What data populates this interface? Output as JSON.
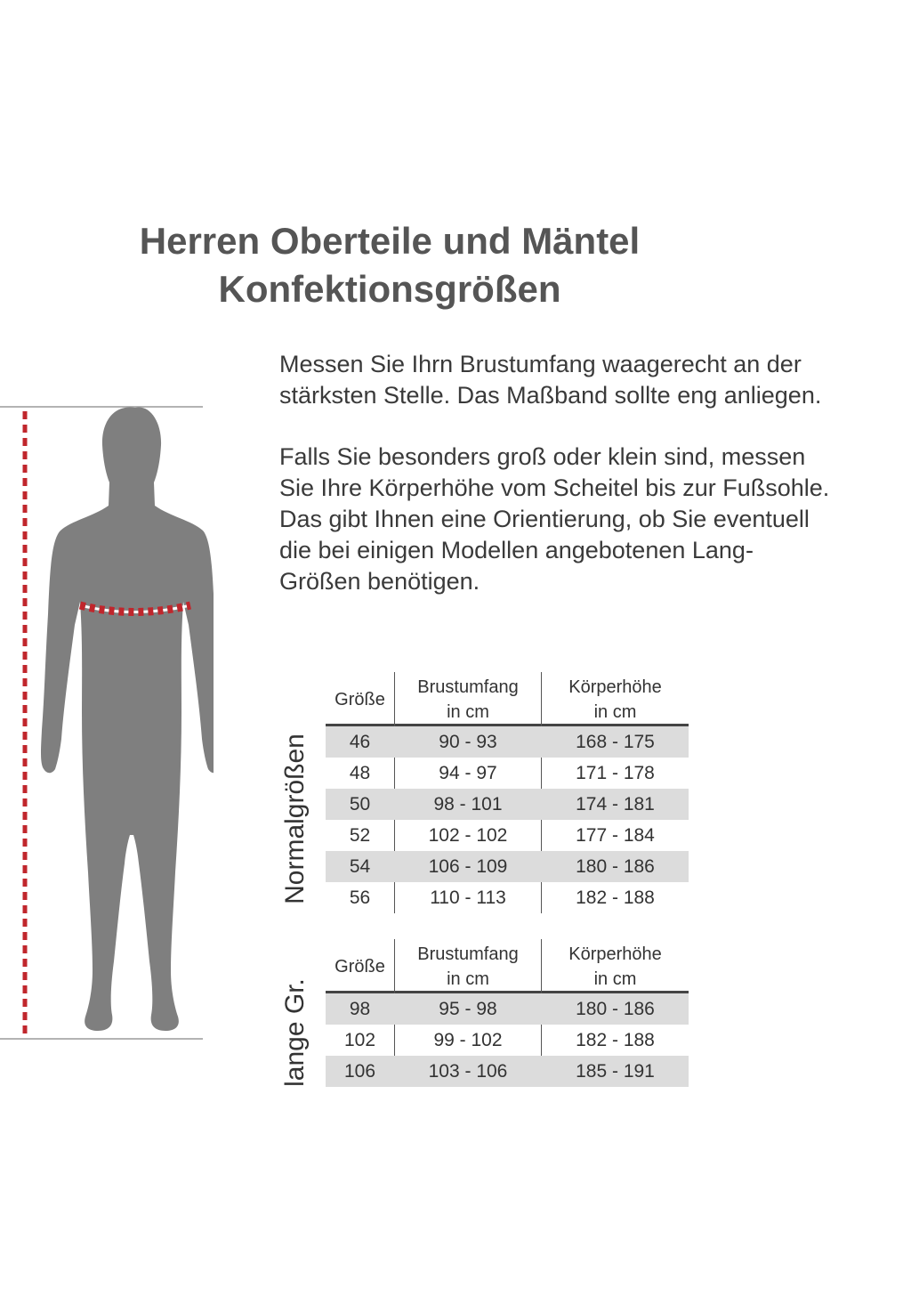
{
  "title": {
    "line1": "Herren Oberteile und Mäntel",
    "line2": "Konfektionsgrößen"
  },
  "instructions": {
    "paragraph1": [
      "Messen Sie Ihrn Brustumfang waagerecht an der",
      "stärksten Stelle. Das Maßband sollte eng anliegen."
    ],
    "paragraph2": [
      "Falls Sie besonders groß oder klein sind, messen",
      "Sie Ihre Körperhöhe vom Scheitel bis zur Fußsohle.",
      "Das gibt Ihnen eine Orientierung, ob Sie eventuell",
      "die bei einigen Modellen angebotenen Lang-",
      "Größen benötigen."
    ]
  },
  "colors": {
    "figure": "#7f7f7f",
    "measure_tape": "#c0262c",
    "row_shade": "#dcdcdc"
  },
  "tables": {
    "normal": {
      "side_label": "Normalgrößen",
      "headers": {
        "size": "Größe",
        "brust": [
          "Brustumfang",
          "in cm"
        ],
        "koerper": [
          "Körperhöhe",
          "in cm"
        ]
      },
      "rows": [
        {
          "size": "46",
          "brust": "90 - 93",
          "koerper": "168 - 175"
        },
        {
          "size": "48",
          "brust": "94 - 97",
          "koerper": "171 - 178"
        },
        {
          "size": "50",
          "brust": "98 - 101",
          "koerper": "174 - 181"
        },
        {
          "size": "52",
          "brust": "102 - 102",
          "koerper": "177 - 184"
        },
        {
          "size": "54",
          "brust": "106 - 109",
          "koerper": "180 - 186"
        },
        {
          "size": "56",
          "brust": "110 - 113",
          "koerper": "182 - 188"
        }
      ]
    },
    "lang": {
      "side_label": "lange Gr.",
      "headers": {
        "size": "Größe",
        "brust": [
          "Brustumfang",
          "in cm"
        ],
        "koerper": [
          "Körperhöhe",
          "in cm"
        ]
      },
      "rows": [
        {
          "size": "98",
          "brust": "95 - 98",
          "koerper": "180 - 186"
        },
        {
          "size": "102",
          "brust": "99 - 102",
          "koerper": "182 - 188"
        },
        {
          "size": "106",
          "brust": "103 - 106",
          "koerper": "185 - 191"
        }
      ]
    }
  }
}
